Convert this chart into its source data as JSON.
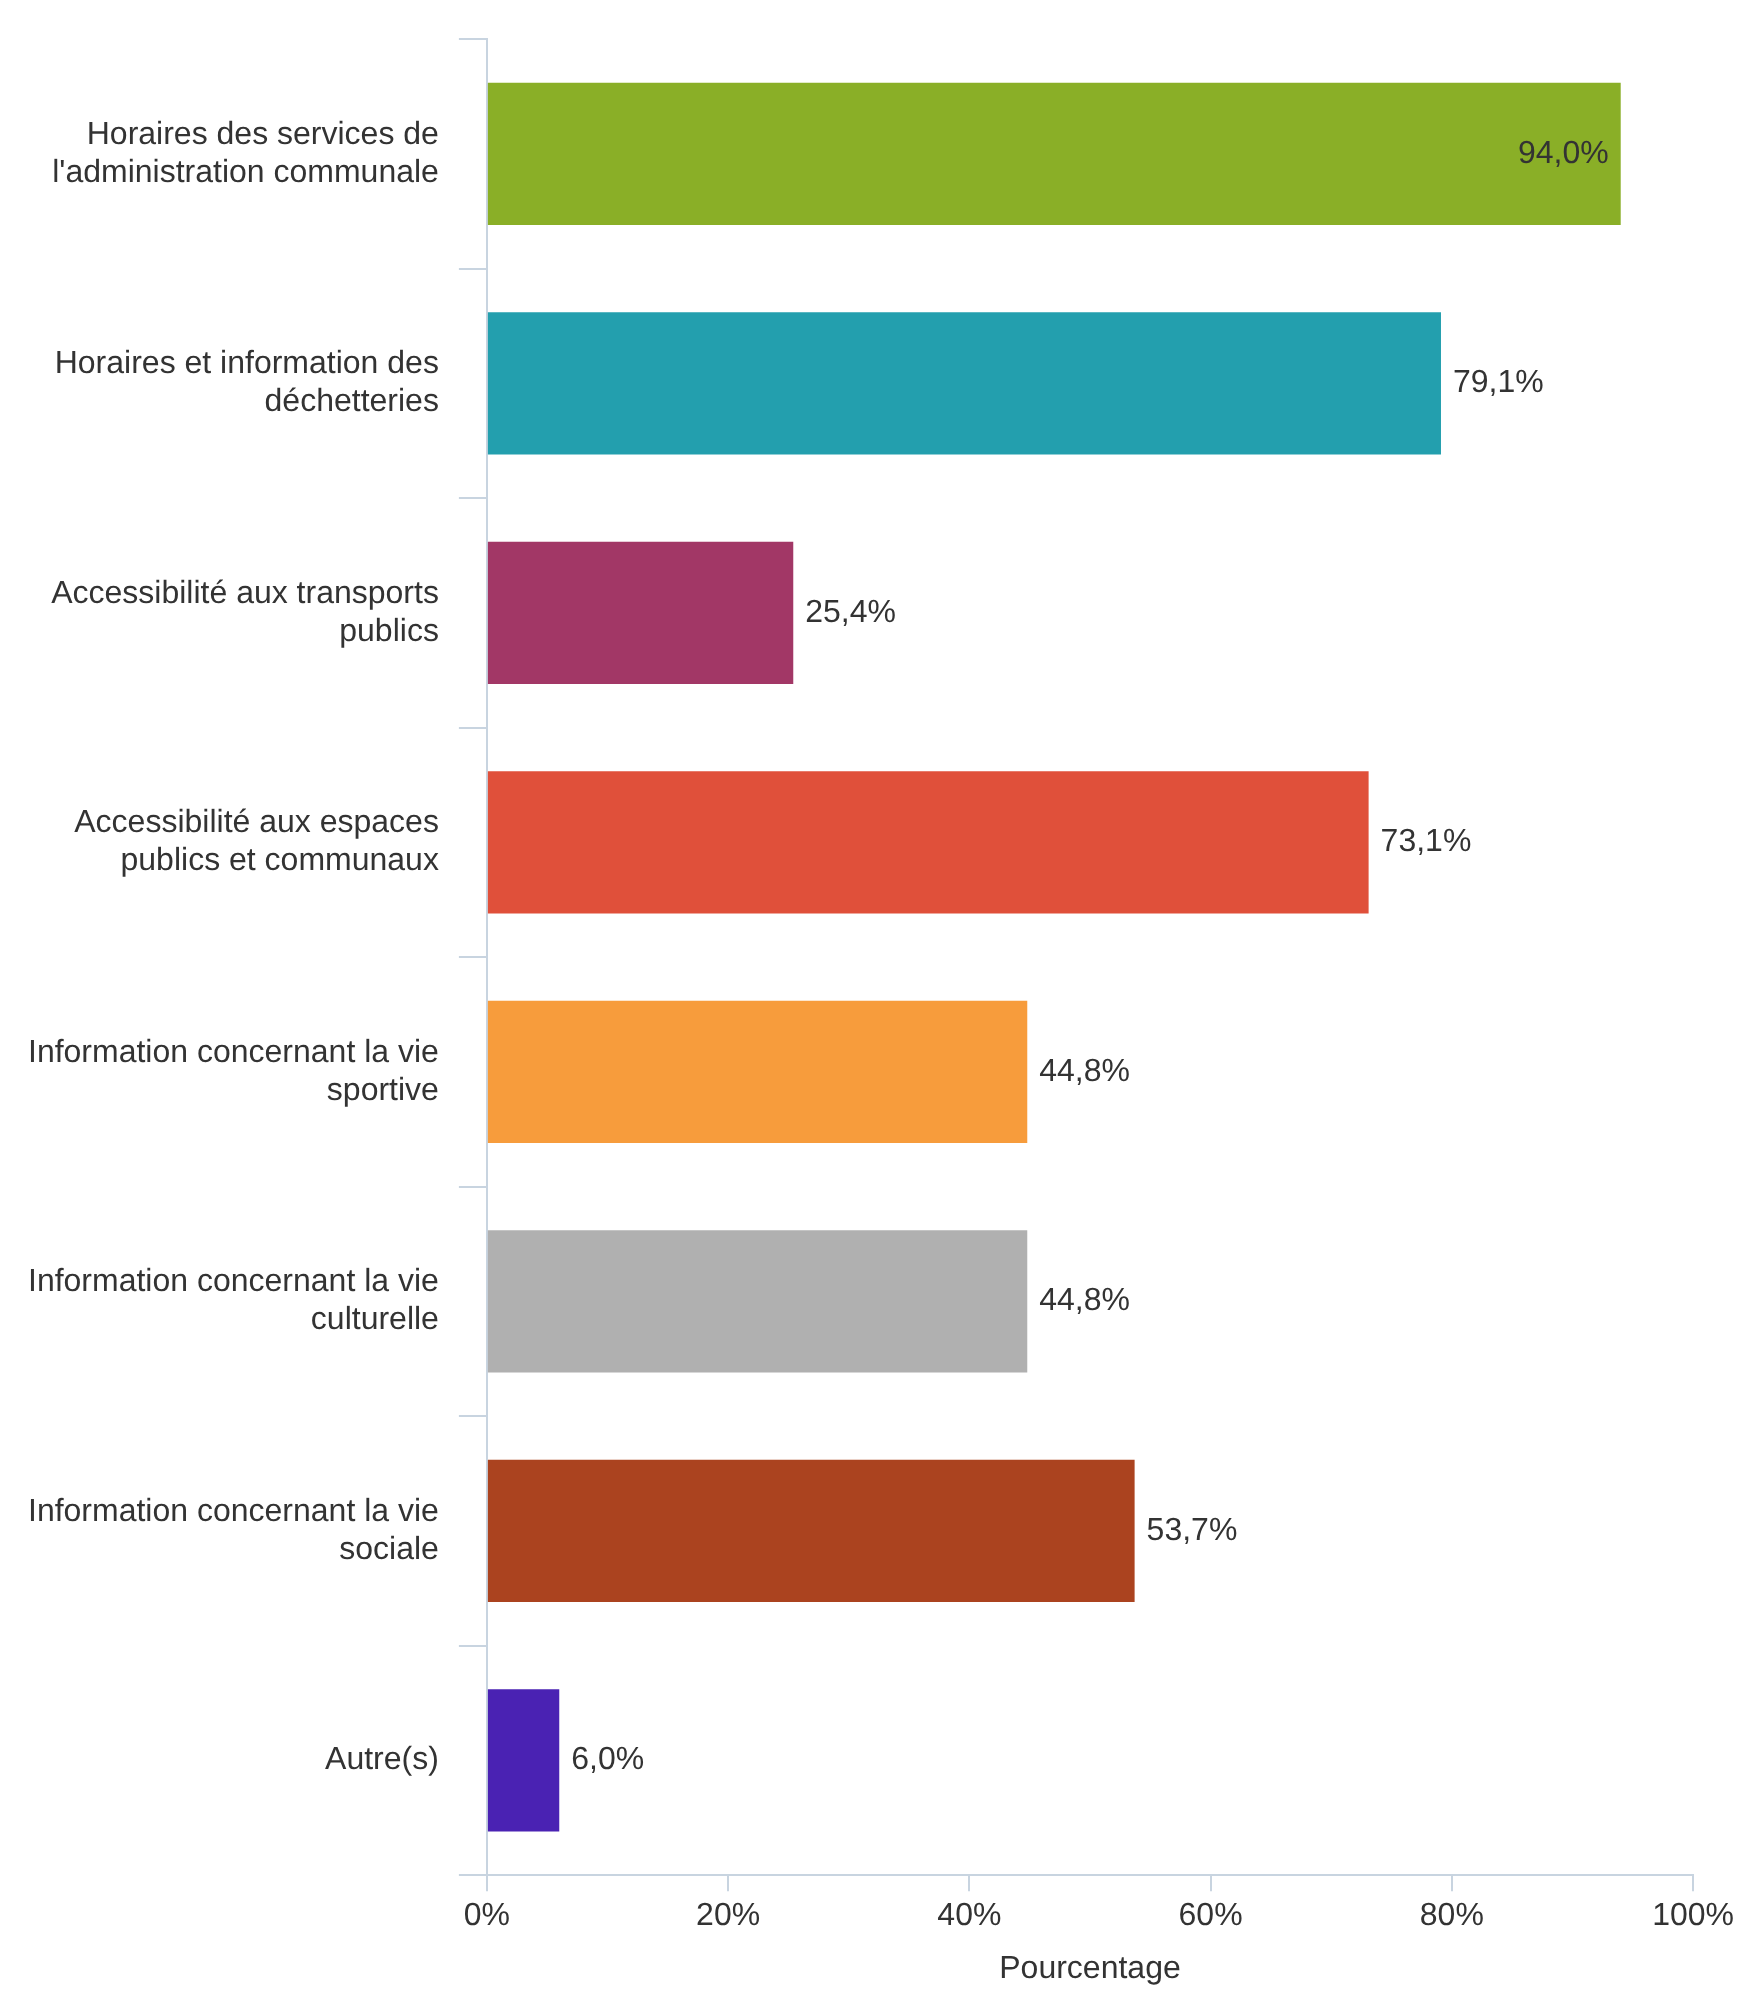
{
  "chart_data": {
    "type": "bar",
    "orientation": "horizontal",
    "xlabel": "Pourcentage",
    "categories": [
      "Horaires des services de l'administration communale",
      "Horaires et information des déchetteries",
      "Accessibilité aux transports publics",
      "Accessibilité aux espaces publics et communaux",
      "Information concernant la vie sportive",
      "Information concernant la vie culturelle",
      "Information concernant la vie sociale",
      "Autre(s)"
    ],
    "values": [
      94.0,
      79.1,
      25.4,
      73.1,
      44.8,
      44.8,
      53.7,
      6.0
    ],
    "value_labels": [
      "94,0%",
      "79,1%",
      "25,4%",
      "73,1%",
      "44,8%",
      "44,8%",
      "53,7%",
      "6,0%"
    ],
    "colors": [
      "#8aaf27",
      "#239fae",
      "#a23766",
      "#e0503a",
      "#f79c3c",
      "#b0b0b0",
      "#ab431f",
      "#4a22b3"
    ],
    "xlim": [
      0,
      100
    ],
    "xticks": [
      {
        "value": 0,
        "label": "0%"
      },
      {
        "value": 20,
        "label": "20%"
      },
      {
        "value": 40,
        "label": "40%"
      },
      {
        "value": 60,
        "label": "60%"
      },
      {
        "value": 80,
        "label": "80%"
      },
      {
        "value": 100,
        "label": "100%"
      }
    ],
    "grid": false,
    "legend": false
  }
}
